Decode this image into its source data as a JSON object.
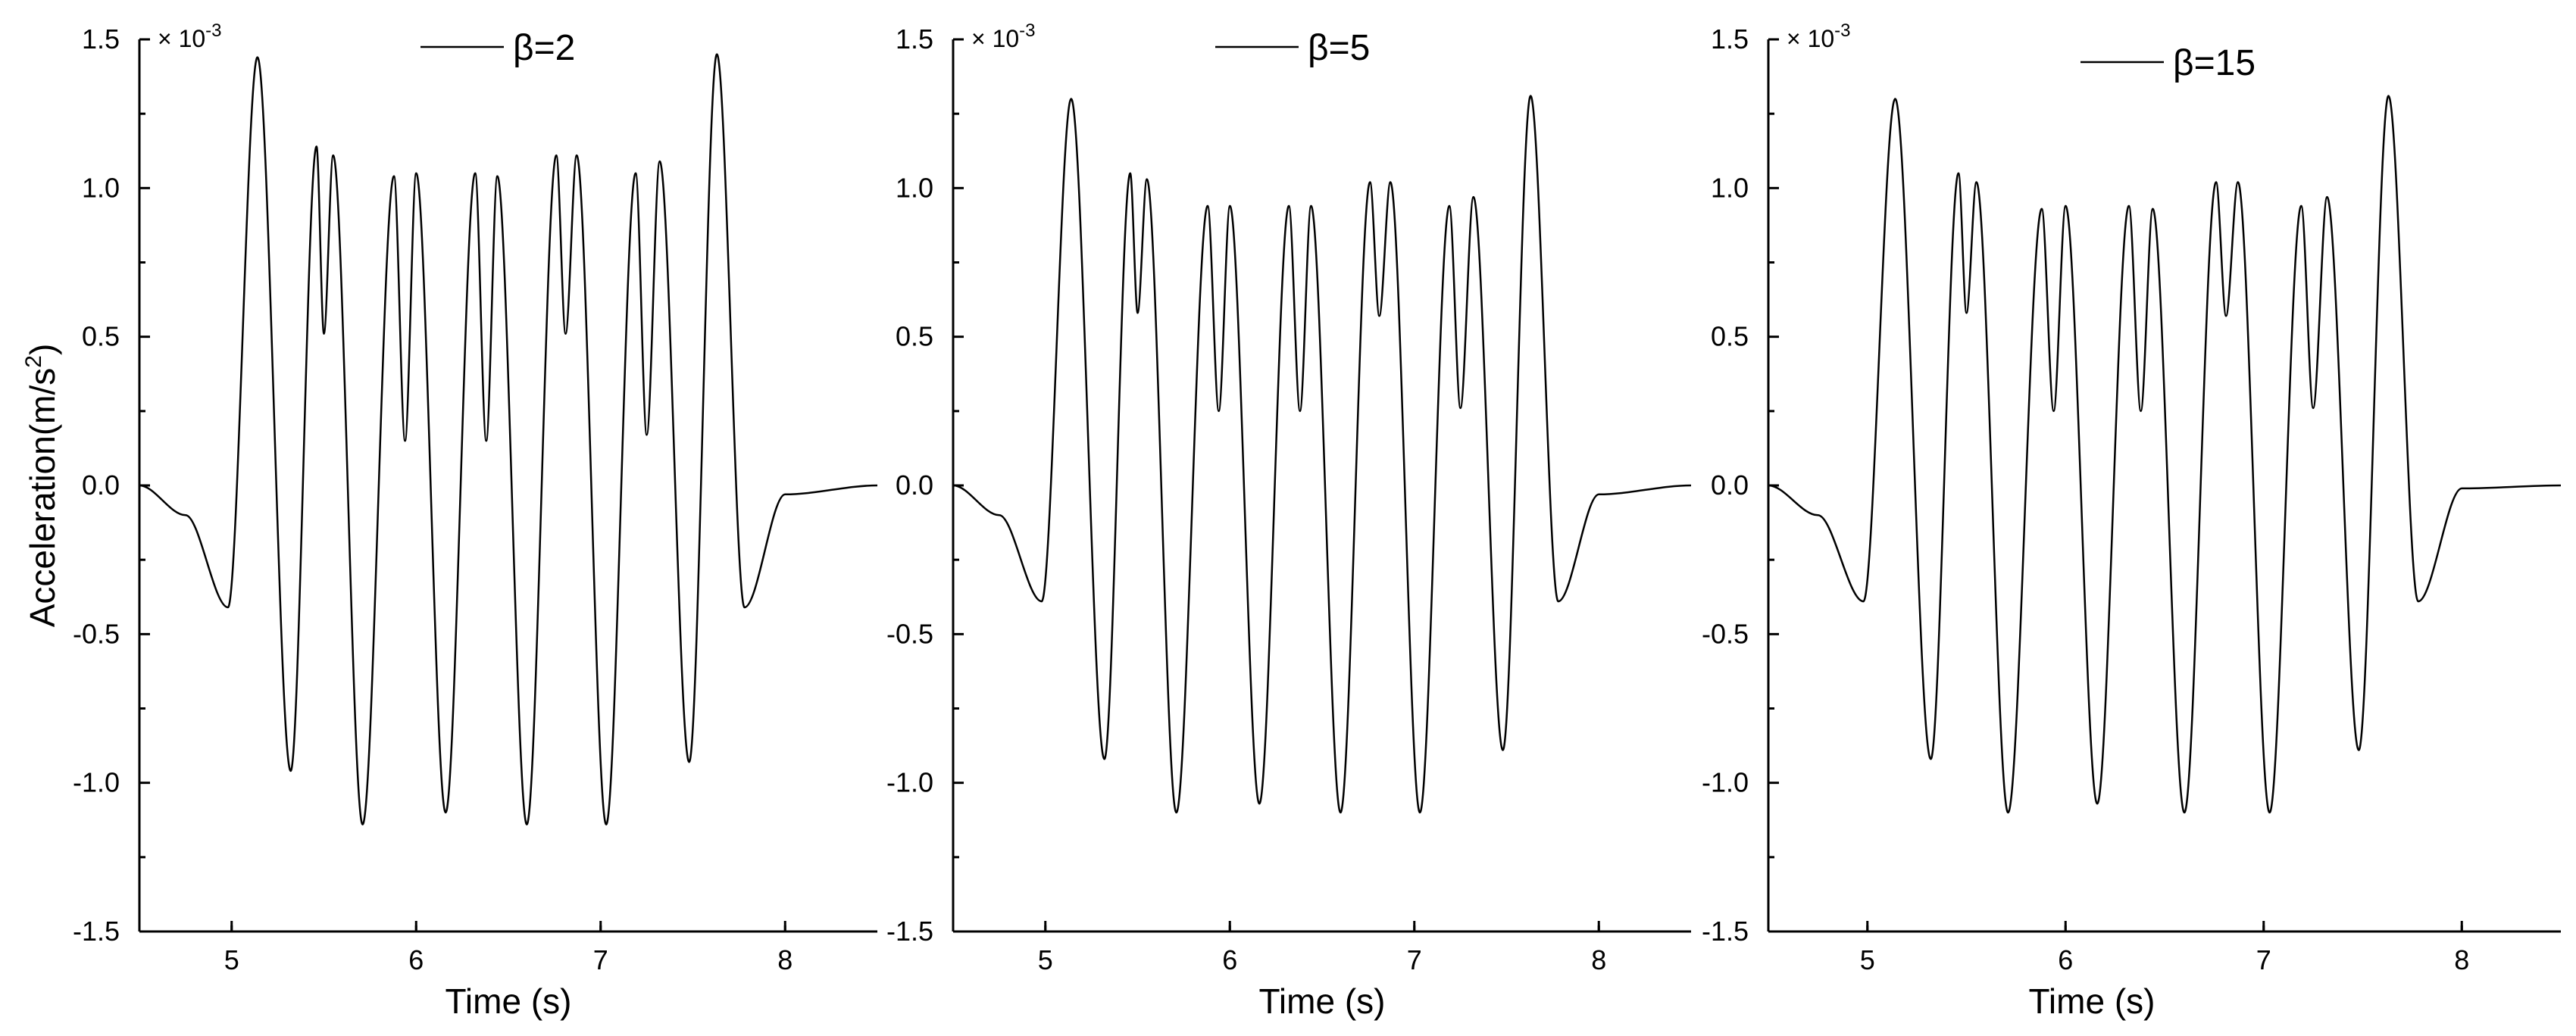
{
  "chart_data": [
    {
      "type": "line",
      "title": "",
      "xlabel": "Time (s)",
      "ylabel": "Acceleration(m/s²)",
      "ylabel_main": "Acceleration(m/s",
      "ylabel_sup": "2",
      "ylabel_tail": ")",
      "y_multiplier": "× 10",
      "y_multiplier_exp": "-3",
      "xlim": [
        4.5,
        8.5
      ],
      "ylim": [
        -1.5,
        1.5
      ],
      "xticks": [
        5,
        6,
        7,
        8
      ],
      "yticks": [
        -1.5,
        -1.0,
        -0.5,
        0.0,
        0.5,
        1.0,
        1.5
      ],
      "ytick_labels": [
        "-1.5",
        "-1.0",
        "-0.5",
        "0.0",
        "0.5",
        "1.0",
        "1.5"
      ],
      "grid": false,
      "legend_position": "top-center",
      "series": [
        {
          "name": "β=2",
          "x": [
            4.5,
            4.75,
            4.98,
            5.14,
            5.32,
            5.46,
            5.5,
            5.55,
            5.71,
            5.88,
            5.94,
            6.0,
            6.16,
            6.32,
            6.38,
            6.44,
            6.6,
            6.76,
            6.81,
            6.87,
            7.03,
            7.19,
            7.25,
            7.32,
            7.48,
            7.63,
            7.78,
            8.0,
            8.5
          ],
          "y": [
            0.0,
            -0.1,
            -0.41,
            1.44,
            -0.96,
            1.14,
            0.51,
            1.11,
            -1.14,
            1.04,
            0.15,
            1.05,
            -1.1,
            1.05,
            0.15,
            1.04,
            -1.14,
            1.11,
            0.51,
            1.11,
            -1.14,
            1.05,
            0.17,
            1.09,
            -0.93,
            1.45,
            -0.41,
            -0.03,
            0.0
          ]
        }
      ]
    },
    {
      "type": "line",
      "title": "",
      "xlabel": "Time (s)",
      "ylabel": "",
      "y_multiplier": "× 10",
      "y_multiplier_exp": "-3",
      "xlim": [
        4.5,
        8.5
      ],
      "ylim": [
        -1.5,
        1.5
      ],
      "xticks": [
        5,
        6,
        7,
        8
      ],
      "yticks": [
        -1.5,
        -1.0,
        -0.5,
        0.0,
        0.5,
        1.0,
        1.5
      ],
      "ytick_labels": [
        "-1.5",
        "-1.0",
        "-0.5",
        "0.0",
        "0.5",
        "1.0",
        "1.5"
      ],
      "grid": false,
      "legend_position": "top-center",
      "series": [
        {
          "name": "β=5",
          "x": [
            4.5,
            4.75,
            4.98,
            5.14,
            5.32,
            5.46,
            5.5,
            5.55,
            5.71,
            5.88,
            5.94,
            6.0,
            6.16,
            6.32,
            6.38,
            6.44,
            6.6,
            6.76,
            6.81,
            6.87,
            7.03,
            7.19,
            7.25,
            7.32,
            7.48,
            7.63,
            7.78,
            8.0,
            8.5
          ],
          "y": [
            0.0,
            -0.1,
            -0.39,
            1.3,
            -0.92,
            1.05,
            0.58,
            1.03,
            -1.1,
            0.94,
            0.25,
            0.94,
            -1.07,
            0.94,
            0.25,
            0.94,
            -1.1,
            1.02,
            0.57,
            1.02,
            -1.1,
            0.94,
            0.26,
            0.97,
            -0.89,
            1.31,
            -0.39,
            -0.03,
            0.0
          ]
        }
      ]
    },
    {
      "type": "line",
      "title": "",
      "xlabel": "Time (s)",
      "ylabel": "",
      "y_multiplier": "× 10",
      "y_multiplier_exp": "-3",
      "xlim": [
        4.5,
        8.5
      ],
      "ylim": [
        -1.5,
        1.5
      ],
      "xticks": [
        5,
        6,
        7,
        8
      ],
      "yticks": [
        -1.5,
        -1.0,
        -0.5,
        0.0,
        0.5,
        1.0,
        1.5
      ],
      "ytick_labels": [
        "-1.5",
        "-1.0",
        "-0.5",
        "0.0",
        "0.5",
        "1.0",
        "1.5"
      ],
      "grid": false,
      "legend_position": "top-center",
      "series": [
        {
          "name": "β=15",
          "x": [
            4.5,
            4.75,
            4.98,
            5.14,
            5.32,
            5.46,
            5.5,
            5.55,
            5.71,
            5.88,
            5.94,
            6.0,
            6.16,
            6.32,
            6.38,
            6.44,
            6.6,
            6.76,
            6.81,
            6.87,
            7.03,
            7.19,
            7.25,
            7.32,
            7.48,
            7.63,
            7.78,
            8.0,
            8.5
          ],
          "y": [
            0.0,
            -0.1,
            -0.39,
            1.3,
            -0.92,
            1.05,
            0.58,
            1.02,
            -1.1,
            0.93,
            0.25,
            0.94,
            -1.07,
            0.94,
            0.25,
            0.93,
            -1.1,
            1.02,
            0.57,
            1.02,
            -1.1,
            0.94,
            0.26,
            0.97,
            -0.89,
            1.31,
            -0.39,
            -0.01,
            0.0
          ]
        }
      ]
    }
  ]
}
